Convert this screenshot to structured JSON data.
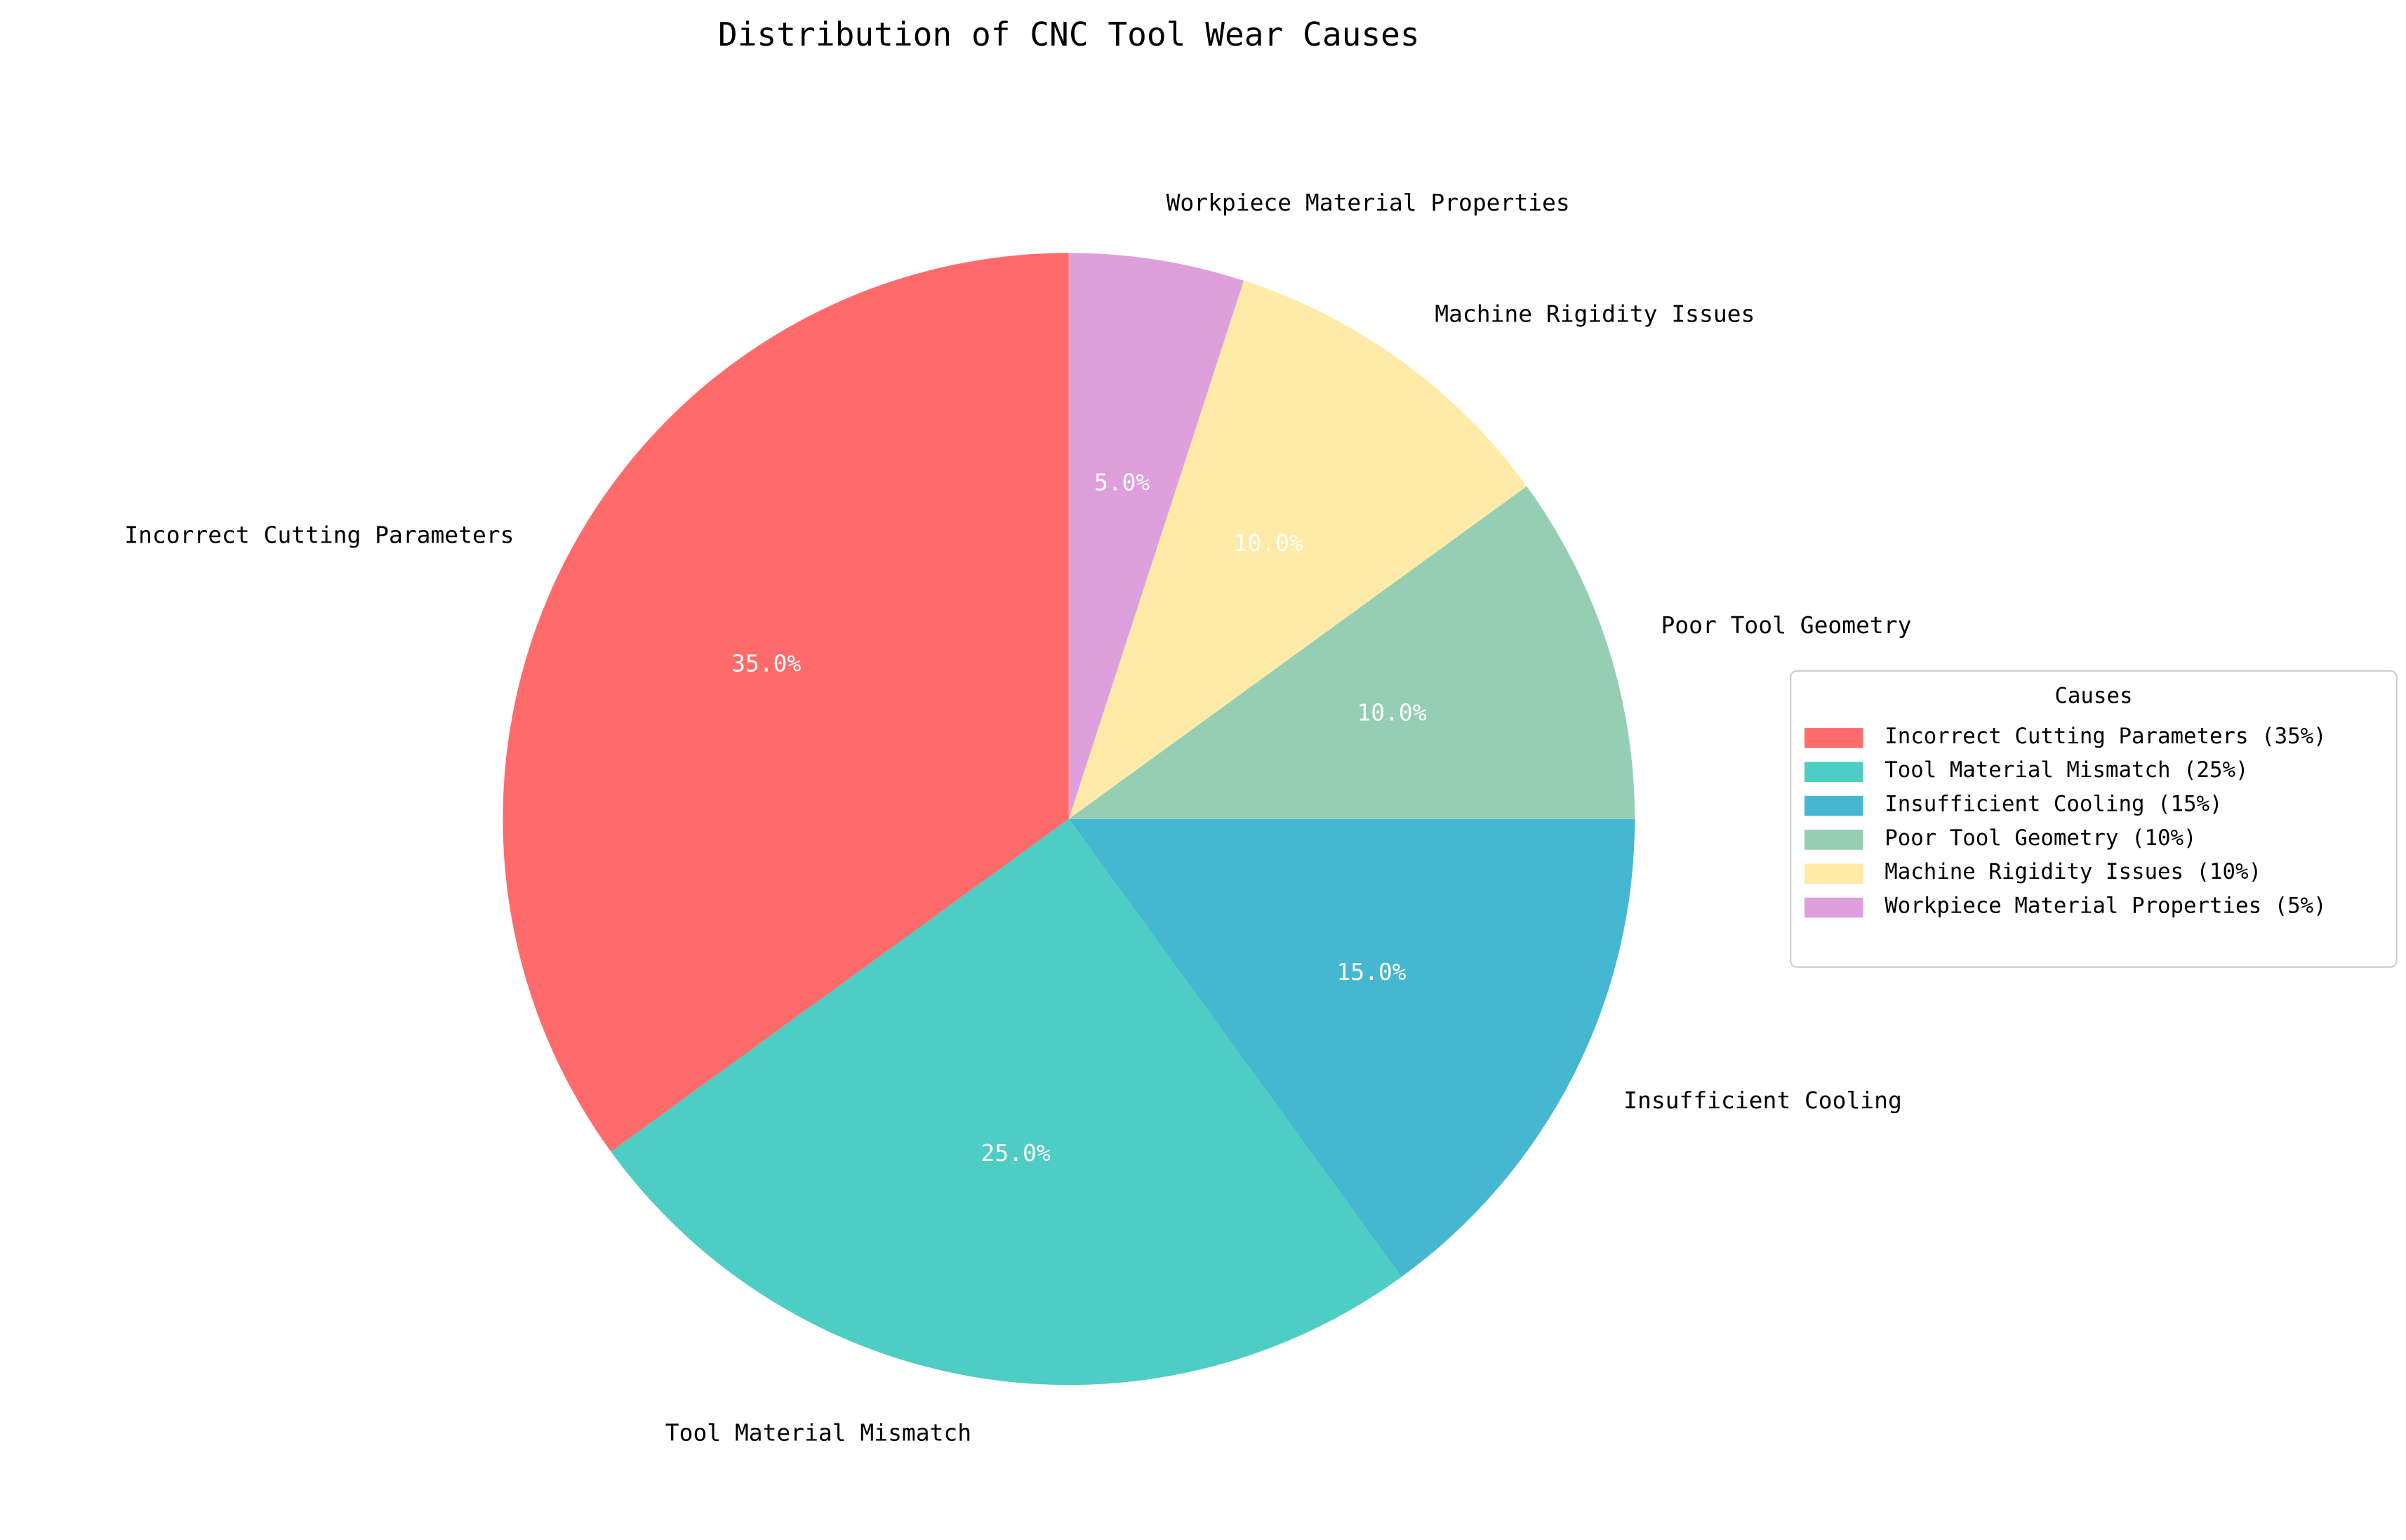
{
  "chart_data": {
    "type": "pie",
    "title": "Distribution of CNC Tool Wear Causes",
    "categories": [
      "Incorrect Cutting Parameters",
      "Tool Material Mismatch",
      "Insufficient Cooling",
      "Poor Tool Geometry",
      "Machine Rigidity Issues",
      "Workpiece Material Properties"
    ],
    "values": [
      35,
      25,
      15,
      10,
      10,
      5
    ],
    "value_labels": [
      "35.0%",
      "25.0%",
      "15.0%",
      "10.0%",
      "10.0%",
      "5.0%"
    ],
    "colors": [
      "#FF6B6B",
      "#4ECDC4",
      "#45B7D1",
      "#96CEB4",
      "#FFEAA7",
      "#DDA0DD"
    ],
    "legend_title": "Causes",
    "legend_labels": [
      "Incorrect Cutting Parameters (35%)",
      "Tool Material Mismatch (25%)",
      "Insufficient Cooling (15%)",
      "Poor Tool Geometry (10%)",
      "Machine Rigidity Issues (10%)",
      "Workpiece Material Properties (5%)"
    ],
    "legend_loc": "center right"
  }
}
